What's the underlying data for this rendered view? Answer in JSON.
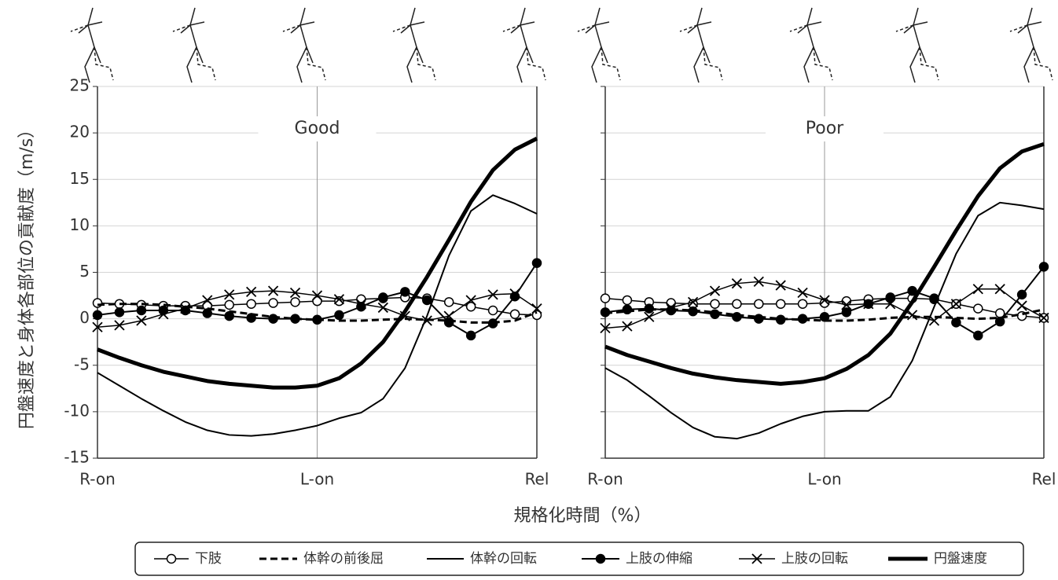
{
  "y_label": "円盤速度と身体各部位の貢献度（m/s）",
  "x_label": "規格化時間（%）",
  "chart_data": [
    {
      "type": "line",
      "title": "Good",
      "x": [
        0,
        5,
        10,
        15,
        20,
        25,
        30,
        35,
        40,
        45,
        50,
        55,
        60,
        65,
        70,
        75,
        80,
        85,
        90,
        95,
        100
      ],
      "xlim": [
        0,
        100
      ],
      "xticks": [
        {
          "value": 0,
          "label": "R-on"
        },
        {
          "value": 50,
          "label": "L-on"
        },
        {
          "value": 100,
          "label": "Rel"
        }
      ],
      "ylim": [
        -15,
        25
      ],
      "yticks": [
        -15,
        -10,
        -5,
        0,
        5,
        10,
        15,
        20,
        25
      ],
      "grid": true,
      "series": [
        {
          "name": "下肢",
          "color": "#000000",
          "width": 1.5,
          "dash": false,
          "marker": "open-circle",
          "values": [
            1.7,
            1.6,
            1.5,
            1.4,
            1.4,
            1.4,
            1.5,
            1.6,
            1.7,
            1.8,
            1.9,
            1.9,
            2.1,
            2.2,
            2.3,
            2.2,
            1.8,
            1.3,
            0.9,
            0.5,
            0.4
          ]
        },
        {
          "name": "体幹の前後屈",
          "color": "#000000",
          "width": 3,
          "dash": true,
          "marker": "none",
          "values": [
            1.5,
            1.6,
            1.6,
            1.5,
            1.3,
            1.1,
            0.8,
            0.5,
            0.2,
            0.0,
            -0.1,
            -0.2,
            -0.2,
            -0.1,
            0.0,
            -0.1,
            -0.2,
            -0.4,
            -0.4,
            -0.2,
            0.7
          ]
        },
        {
          "name": "体幹の回転",
          "color": "#000000",
          "width": 2,
          "dash": false,
          "marker": "none",
          "values": [
            -5.8,
            -7.2,
            -8.6,
            -9.9,
            -11.1,
            -12.0,
            -12.5,
            -12.6,
            -12.4,
            -12.0,
            -11.5,
            -10.7,
            -10.1,
            -8.6,
            -5.3,
            0.3,
            6.8,
            11.6,
            13.3,
            12.4,
            11.3
          ]
        },
        {
          "name": "上肢の伸縮",
          "color": "#000000",
          "width": 2,
          "dash": false,
          "marker": "filled-circle",
          "values": [
            0.4,
            0.7,
            0.9,
            0.9,
            0.9,
            0.6,
            0.3,
            0.1,
            0.0,
            0.0,
            -0.1,
            0.4,
            1.3,
            2.3,
            2.9,
            2.0,
            -0.4,
            -1.8,
            -0.5,
            2.4,
            6.0
          ]
        },
        {
          "name": "上肢の回転",
          "color": "#000000",
          "width": 1.5,
          "dash": false,
          "marker": "cross",
          "values": [
            -0.9,
            -0.7,
            -0.2,
            0.5,
            1.1,
            2.0,
            2.6,
            2.9,
            3.0,
            2.8,
            2.5,
            2.1,
            1.6,
            1.2,
            0.3,
            -0.2,
            0.3,
            2.0,
            2.6,
            2.7,
            1.1
          ]
        },
        {
          "name": "円盤速度",
          "color": "#000000",
          "width": 5,
          "dash": false,
          "marker": "none",
          "values": [
            -3.3,
            -4.2,
            -5.0,
            -5.7,
            -6.2,
            -6.7,
            -7.0,
            -7.2,
            -7.4,
            -7.4,
            -7.2,
            -6.4,
            -4.8,
            -2.5,
            0.8,
            4.5,
            8.5,
            12.6,
            16.0,
            18.2,
            19.4
          ]
        }
      ]
    },
    {
      "type": "line",
      "title": "Poor",
      "x": [
        0,
        5,
        10,
        15,
        20,
        25,
        30,
        35,
        40,
        45,
        50,
        55,
        60,
        65,
        70,
        75,
        80,
        85,
        90,
        95,
        100
      ],
      "xlim": [
        0,
        100
      ],
      "xticks": [
        {
          "value": 0,
          "label": "R-on"
        },
        {
          "value": 50,
          "label": "L-on"
        },
        {
          "value": 100,
          "label": "Rel"
        }
      ],
      "ylim": [
        -15,
        25
      ],
      "yticks": [
        -15,
        -10,
        -5,
        0,
        5,
        10,
        15,
        20,
        25
      ],
      "grid": true,
      "series": [
        {
          "color": "#000000",
          "width": 1.5,
          "dash": false,
          "marker": "open-circle",
          "values": [
            2.2,
            2.0,
            1.8,
            1.7,
            1.6,
            1.6,
            1.6,
            1.6,
            1.6,
            1.6,
            1.7,
            1.9,
            2.1,
            2.2,
            2.2,
            2.1,
            1.6,
            1.1,
            0.6,
            0.3,
            0.1
          ]
        },
        {
          "color": "#000000",
          "width": 3,
          "dash": true,
          "marker": "none",
          "values": [
            0.6,
            0.8,
            1.0,
            1.0,
            0.9,
            0.7,
            0.4,
            0.2,
            0.0,
            -0.1,
            -0.2,
            -0.2,
            -0.1,
            0.1,
            0.2,
            0.2,
            0.1,
            0.0,
            0.1,
            0.5,
            1.0
          ]
        },
        {
          "color": "#000000",
          "width": 2,
          "dash": false,
          "marker": "none",
          "values": [
            -5.3,
            -6.6,
            -8.3,
            -10.1,
            -11.7,
            -12.7,
            -12.9,
            -12.3,
            -11.3,
            -10.5,
            -10.0,
            -9.9,
            -9.9,
            -8.4,
            -4.5,
            1.3,
            7.0,
            11.1,
            12.5,
            12.2,
            11.8
          ]
        },
        {
          "color": "#000000",
          "width": 2,
          "dash": false,
          "marker": "filled-circle",
          "values": [
            0.7,
            1.0,
            1.1,
            0.9,
            0.8,
            0.5,
            0.2,
            0.0,
            -0.1,
            0.0,
            0.2,
            0.7,
            1.6,
            2.3,
            3.0,
            2.2,
            -0.4,
            -1.8,
            -0.3,
            2.6,
            5.6
          ]
        },
        {
          "color": "#000000",
          "width": 1.5,
          "dash": false,
          "marker": "cross",
          "values": [
            -1.0,
            -0.8,
            0.2,
            1.2,
            1.8,
            3.0,
            3.8,
            4.0,
            3.6,
            2.8,
            2.0,
            1.5,
            1.6,
            1.6,
            0.4,
            -0.2,
            1.6,
            3.2,
            3.2,
            1.4,
            0.1
          ]
        },
        {
          "color": "#000000",
          "width": 5,
          "dash": false,
          "marker": "none",
          "values": [
            -3.0,
            -3.9,
            -4.6,
            -5.3,
            -5.9,
            -6.3,
            -6.6,
            -6.8,
            -7.0,
            -6.8,
            -6.4,
            -5.4,
            -3.9,
            -1.6,
            1.8,
            5.6,
            9.5,
            13.2,
            16.2,
            18.0,
            18.8
          ]
        }
      ]
    }
  ]
}
